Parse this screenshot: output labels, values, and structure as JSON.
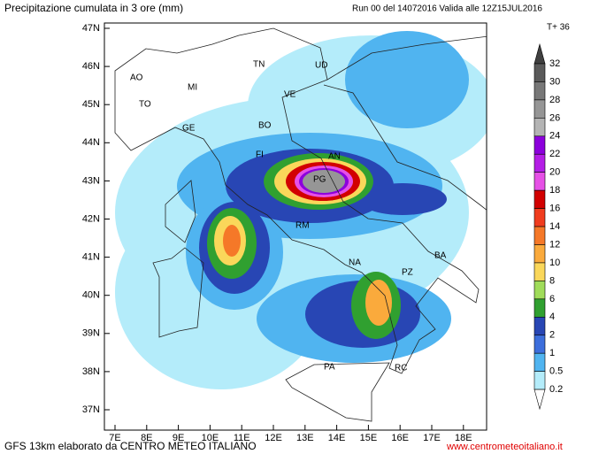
{
  "header": {
    "title": "Precipitazione cumulata in 3 ore (mm)",
    "run": "Run 00 del 14072016  Valida alle 12Z15JUL2016",
    "step": "T+ 36"
  },
  "map": {
    "lat_labels": [
      "47N",
      "46N",
      "45N",
      "44N",
      "43N",
      "42N",
      "41N",
      "40N",
      "39N",
      "38N",
      "37N"
    ],
    "lon_labels": [
      "7E",
      "8E",
      "9E",
      "10E",
      "11E",
      "12E",
      "13E",
      "14E",
      "15E",
      "16E",
      "17E",
      "18E"
    ],
    "cities": [
      "AO",
      "MI",
      "TO",
      "GE",
      "TN",
      "UD",
      "VE",
      "BO",
      "FI",
      "AN",
      "PG",
      "RM",
      "NA",
      "BA",
      "PZ",
      "PA",
      "RC"
    ]
  },
  "legend": {
    "labels": [
      "32",
      "30",
      "28",
      "26",
      "24",
      "22",
      "20",
      "18",
      "16",
      "14",
      "12",
      "10",
      "8",
      "6",
      "4",
      "2",
      "1",
      "0.5",
      "0.2"
    ],
    "colors": [
      "#404040",
      "#5a5a5a",
      "#787878",
      "#969696",
      "#b4b4b4",
      "#8c00dc",
      "#b41ee6",
      "#e650e6",
      "#d20000",
      "#f03c1e",
      "#f57828",
      "#faaa3c",
      "#fad75a",
      "#a0dc5a",
      "#30a030",
      "#2846b4",
      "#3c6edc",
      "#50b4f0",
      "#b4ecfa",
      "#ffffff"
    ]
  },
  "footer": {
    "left": "GFS 13km elaborato da CENTRO METEO ITALIANO",
    "right": "www.centrometeoitaliano.it"
  }
}
